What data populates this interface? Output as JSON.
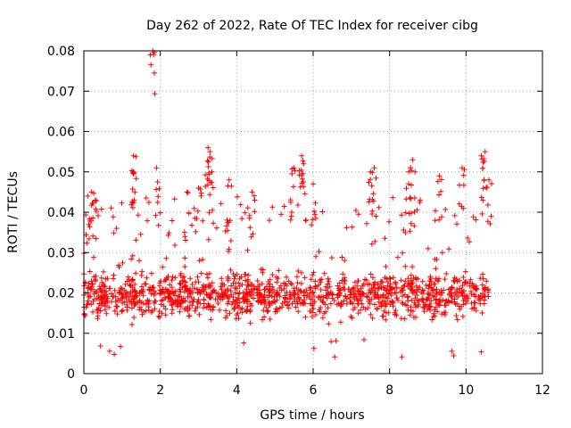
{
  "chart_data": {
    "type": "scatter",
    "title": "Day 262 of 2022, Rate Of TEC Index for receiver cibg",
    "xlabel": "GPS time / hours",
    "ylabel": "ROTI / TECUs",
    "xlim": [
      0,
      12
    ],
    "ylim": [
      0,
      0.08
    ],
    "xticks": [
      0,
      2,
      4,
      6,
      8,
      10,
      12
    ],
    "xtick_labels": [
      "0",
      "2",
      "4",
      "6",
      "8",
      "10",
      "12"
    ],
    "yticks": [
      0,
      0.01,
      0.02,
      0.03,
      0.04,
      0.05,
      0.06,
      0.07,
      0.08
    ],
    "ytick_labels": [
      "0",
      "0.01",
      "0.02",
      "0.03",
      "0.04",
      "0.05",
      "0.06",
      "0.07",
      "0.08"
    ],
    "grid": true,
    "marker": "+",
    "series": [
      {
        "name": "ROTI",
        "color": "#ff0000",
        "x_range": [
          0.0,
          10.6
        ],
        "typical_range": [
          0.008,
          0.03
        ],
        "peaks": [
          {
            "x": 0.1,
            "y": 0.044
          },
          {
            "x": 0.2,
            "y": 0.045
          },
          {
            "x": 0.3,
            "y": 0.043
          },
          {
            "x": 1.3,
            "y": 0.054
          },
          {
            "x": 1.3,
            "y": 0.05
          },
          {
            "x": 1.8,
            "y": 0.08
          },
          {
            "x": 1.9,
            "y": 0.051
          },
          {
            "x": 2.7,
            "y": 0.045
          },
          {
            "x": 3.0,
            "y": 0.046
          },
          {
            "x": 3.25,
            "y": 0.056
          },
          {
            "x": 3.3,
            "y": 0.055
          },
          {
            "x": 3.35,
            "y": 0.05
          },
          {
            "x": 3.8,
            "y": 0.048
          },
          {
            "x": 4.4,
            "y": 0.045
          },
          {
            "x": 5.5,
            "y": 0.051
          },
          {
            "x": 5.7,
            "y": 0.054
          },
          {
            "x": 5.75,
            "y": 0.052
          },
          {
            "x": 6.0,
            "y": 0.047
          },
          {
            "x": 7.5,
            "y": 0.05
          },
          {
            "x": 7.6,
            "y": 0.051
          },
          {
            "x": 8.5,
            "y": 0.05
          },
          {
            "x": 8.6,
            "y": 0.053
          },
          {
            "x": 9.3,
            "y": 0.049
          },
          {
            "x": 9.9,
            "y": 0.051
          },
          {
            "x": 10.4,
            "y": 0.054
          },
          {
            "x": 10.5,
            "y": 0.055
          },
          {
            "x": 10.6,
            "y": 0.048
          }
        ]
      }
    ]
  }
}
